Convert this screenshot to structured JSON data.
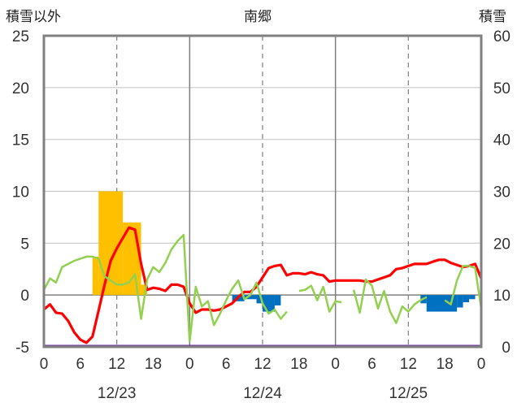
{
  "header": {
    "left_label": "積雪以外",
    "center_title": "南郷",
    "right_label": "積雪"
  },
  "chart_data": {
    "type": "line",
    "title": "南郷",
    "x_tick_labels": [
      "0",
      "6",
      "12",
      "18",
      "0",
      "6",
      "12",
      "18",
      "0",
      "6",
      "12",
      "18",
      "0"
    ],
    "date_labels": [
      "12/23",
      "12/24",
      "12/25"
    ],
    "left_axis": {
      "label": "積雪以外",
      "ylim": [
        -5,
        25
      ],
      "ticks": [
        "-5",
        "0",
        "5",
        "10",
        "15",
        "20",
        "25"
      ]
    },
    "right_axis": {
      "label": "積雪",
      "ylim": [
        0,
        60
      ],
      "ticks": [
        "0",
        "10",
        "20",
        "30",
        "40",
        "50",
        "60"
      ]
    },
    "grid": true,
    "colors": {
      "temperature": "#ff0000",
      "wind_or_humidity": "#92d050",
      "snowfall": "#ffc000",
      "precip_negative": "#0070c0",
      "baseline": "#7030a0",
      "frame": "#808080"
    },
    "series": [
      {
        "color": "#ff0000",
        "axis": "left",
        "x": [
          0,
          1,
          2,
          3,
          4,
          5,
          6,
          7,
          8,
          9,
          10,
          11,
          12,
          13,
          14,
          15,
          16,
          17,
          18,
          19,
          20,
          21,
          22,
          23,
          24,
          25,
          26,
          27,
          28,
          29,
          30,
          31,
          32,
          33,
          34,
          35,
          36,
          37,
          38,
          39,
          40,
          41,
          42,
          43,
          44,
          45,
          46,
          47,
          48,
          49,
          50,
          51,
          52,
          53,
          54,
          55,
          56,
          57,
          58,
          59,
          60,
          61,
          62,
          63,
          64,
          65,
          66,
          67,
          68,
          69,
          70,
          71,
          72
        ],
        "values": [
          -1.4,
          -0.9,
          -1.7,
          -1.8,
          -2.5,
          -3.6,
          -4.3,
          -4.6,
          -4.0,
          -1.5,
          1.0,
          3.3,
          4.5,
          5.5,
          6.5,
          6.3,
          3.0,
          0.5,
          0.7,
          0.6,
          0.4,
          1.0,
          1.0,
          0.8,
          -0.8,
          -1.7,
          -1.4,
          -1.4,
          -1.5,
          -1.4,
          -1.1,
          -0.8,
          -0.2,
          0.3,
          0.3,
          0.8,
          1.7,
          2.6,
          2.8,
          2.9,
          1.9,
          2.1,
          2.1,
          2.0,
          2.2,
          2.0,
          1.9,
          1.3,
          1.4,
          1.4,
          1.4,
          1.4,
          1.4,
          1.3,
          1.3,
          1.5,
          1.7,
          1.9,
          2.5,
          2.6,
          2.8,
          3.0,
          3.0,
          3.0,
          3.2,
          3.4,
          3.4,
          3.1,
          2.9,
          2.7,
          2.8,
          3.0,
          1.6
        ]
      },
      {
        "color": "#92d050",
        "axis": "left",
        "segments": [
          {
            "x": [
              0,
              1,
              2,
              3,
              4,
              5,
              6,
              7,
              8,
              9,
              10,
              11,
              12,
              13,
              14,
              15,
              16,
              17,
              18,
              19,
              20,
              21,
              22,
              23,
              24
            ],
            "values": [
              0.5,
              1.6,
              1.2,
              2.7,
              3.0,
              3.3,
              3.5,
              3.7,
              3.7,
              3.5,
              1.8,
              1.4,
              1.0,
              1.0,
              1.2,
              2.0,
              -2.3,
              1.5,
              2.7,
              2.2,
              3.1,
              4.4,
              5.2,
              5.8,
              -4.5
            ]
          },
          {
            "x": [
              24,
              25,
              26,
              27,
              28,
              29,
              30,
              31,
              32,
              33,
              34,
              35,
              36,
              37,
              38,
              39,
              40
            ],
            "values": [
              -4.5,
              0.8,
              -1.1,
              -0.6,
              -2.9,
              -1.8,
              -0.5,
              0.6,
              1.4,
              -0.4,
              0.0,
              1.2,
              -0.8,
              -1.8,
              -1.4,
              -2.3,
              -1.6
            ]
          },
          {
            "x": [
              42,
              43,
              44,
              45,
              46,
              47,
              48,
              49
            ],
            "values": [
              0.4,
              0.5,
              0.9,
              -0.5,
              0.8,
              -1.6,
              -0.6,
              -0.7
            ]
          },
          {
            "x": [
              51,
              52,
              53,
              54,
              55,
              56,
              57,
              58,
              59,
              60,
              61,
              62,
              63,
              64,
              65,
              66,
              67,
              68,
              69,
              70,
              71,
              72
            ],
            "values": [
              0.5,
              -1.7,
              1.5,
              0.9,
              -1.3,
              0.4,
              -1.6,
              -2.7,
              -1.1,
              -1.6,
              -0.9,
              -0.5,
              -0.2,
              null,
              null,
              -0.5,
              -0.9,
              1.4,
              2.8,
              2.8,
              2.6,
              -1.3
            ]
          }
        ]
      }
    ],
    "bars_snowfall": {
      "color": "#ffc000",
      "axis": "left",
      "items": [
        {
          "x_start": 8,
          "x_end": 9,
          "value": 3.7
        },
        {
          "x_start": 9,
          "x_end": 13,
          "value": 10.0
        },
        {
          "x_start": 13,
          "x_end": 16,
          "value": 7.0
        },
        {
          "x_start": 16,
          "x_end": 17,
          "value": 1.0
        }
      ]
    },
    "bars_negative": {
      "color": "#0070c0",
      "axis": "left",
      "items": [
        {
          "x_start": 31,
          "x_end": 33,
          "value": -0.6
        },
        {
          "x_start": 33,
          "x_end": 35,
          "value": -0.4
        },
        {
          "x_start": 35,
          "x_end": 36,
          "value": -0.8
        },
        {
          "x_start": 36,
          "x_end": 38,
          "value": -1.6
        },
        {
          "x_start": 38,
          "x_end": 39,
          "value": -1.0
        },
        {
          "x_start": 62,
          "x_end": 63,
          "value": -0.8
        },
        {
          "x_start": 63,
          "x_end": 68,
          "value": -1.6
        },
        {
          "x_start": 68,
          "x_end": 69,
          "value": -1.2
        },
        {
          "x_start": 69,
          "x_end": 70,
          "value": -0.7
        },
        {
          "x_start": 70,
          "x_end": 71,
          "value": -0.4
        }
      ]
    }
  }
}
